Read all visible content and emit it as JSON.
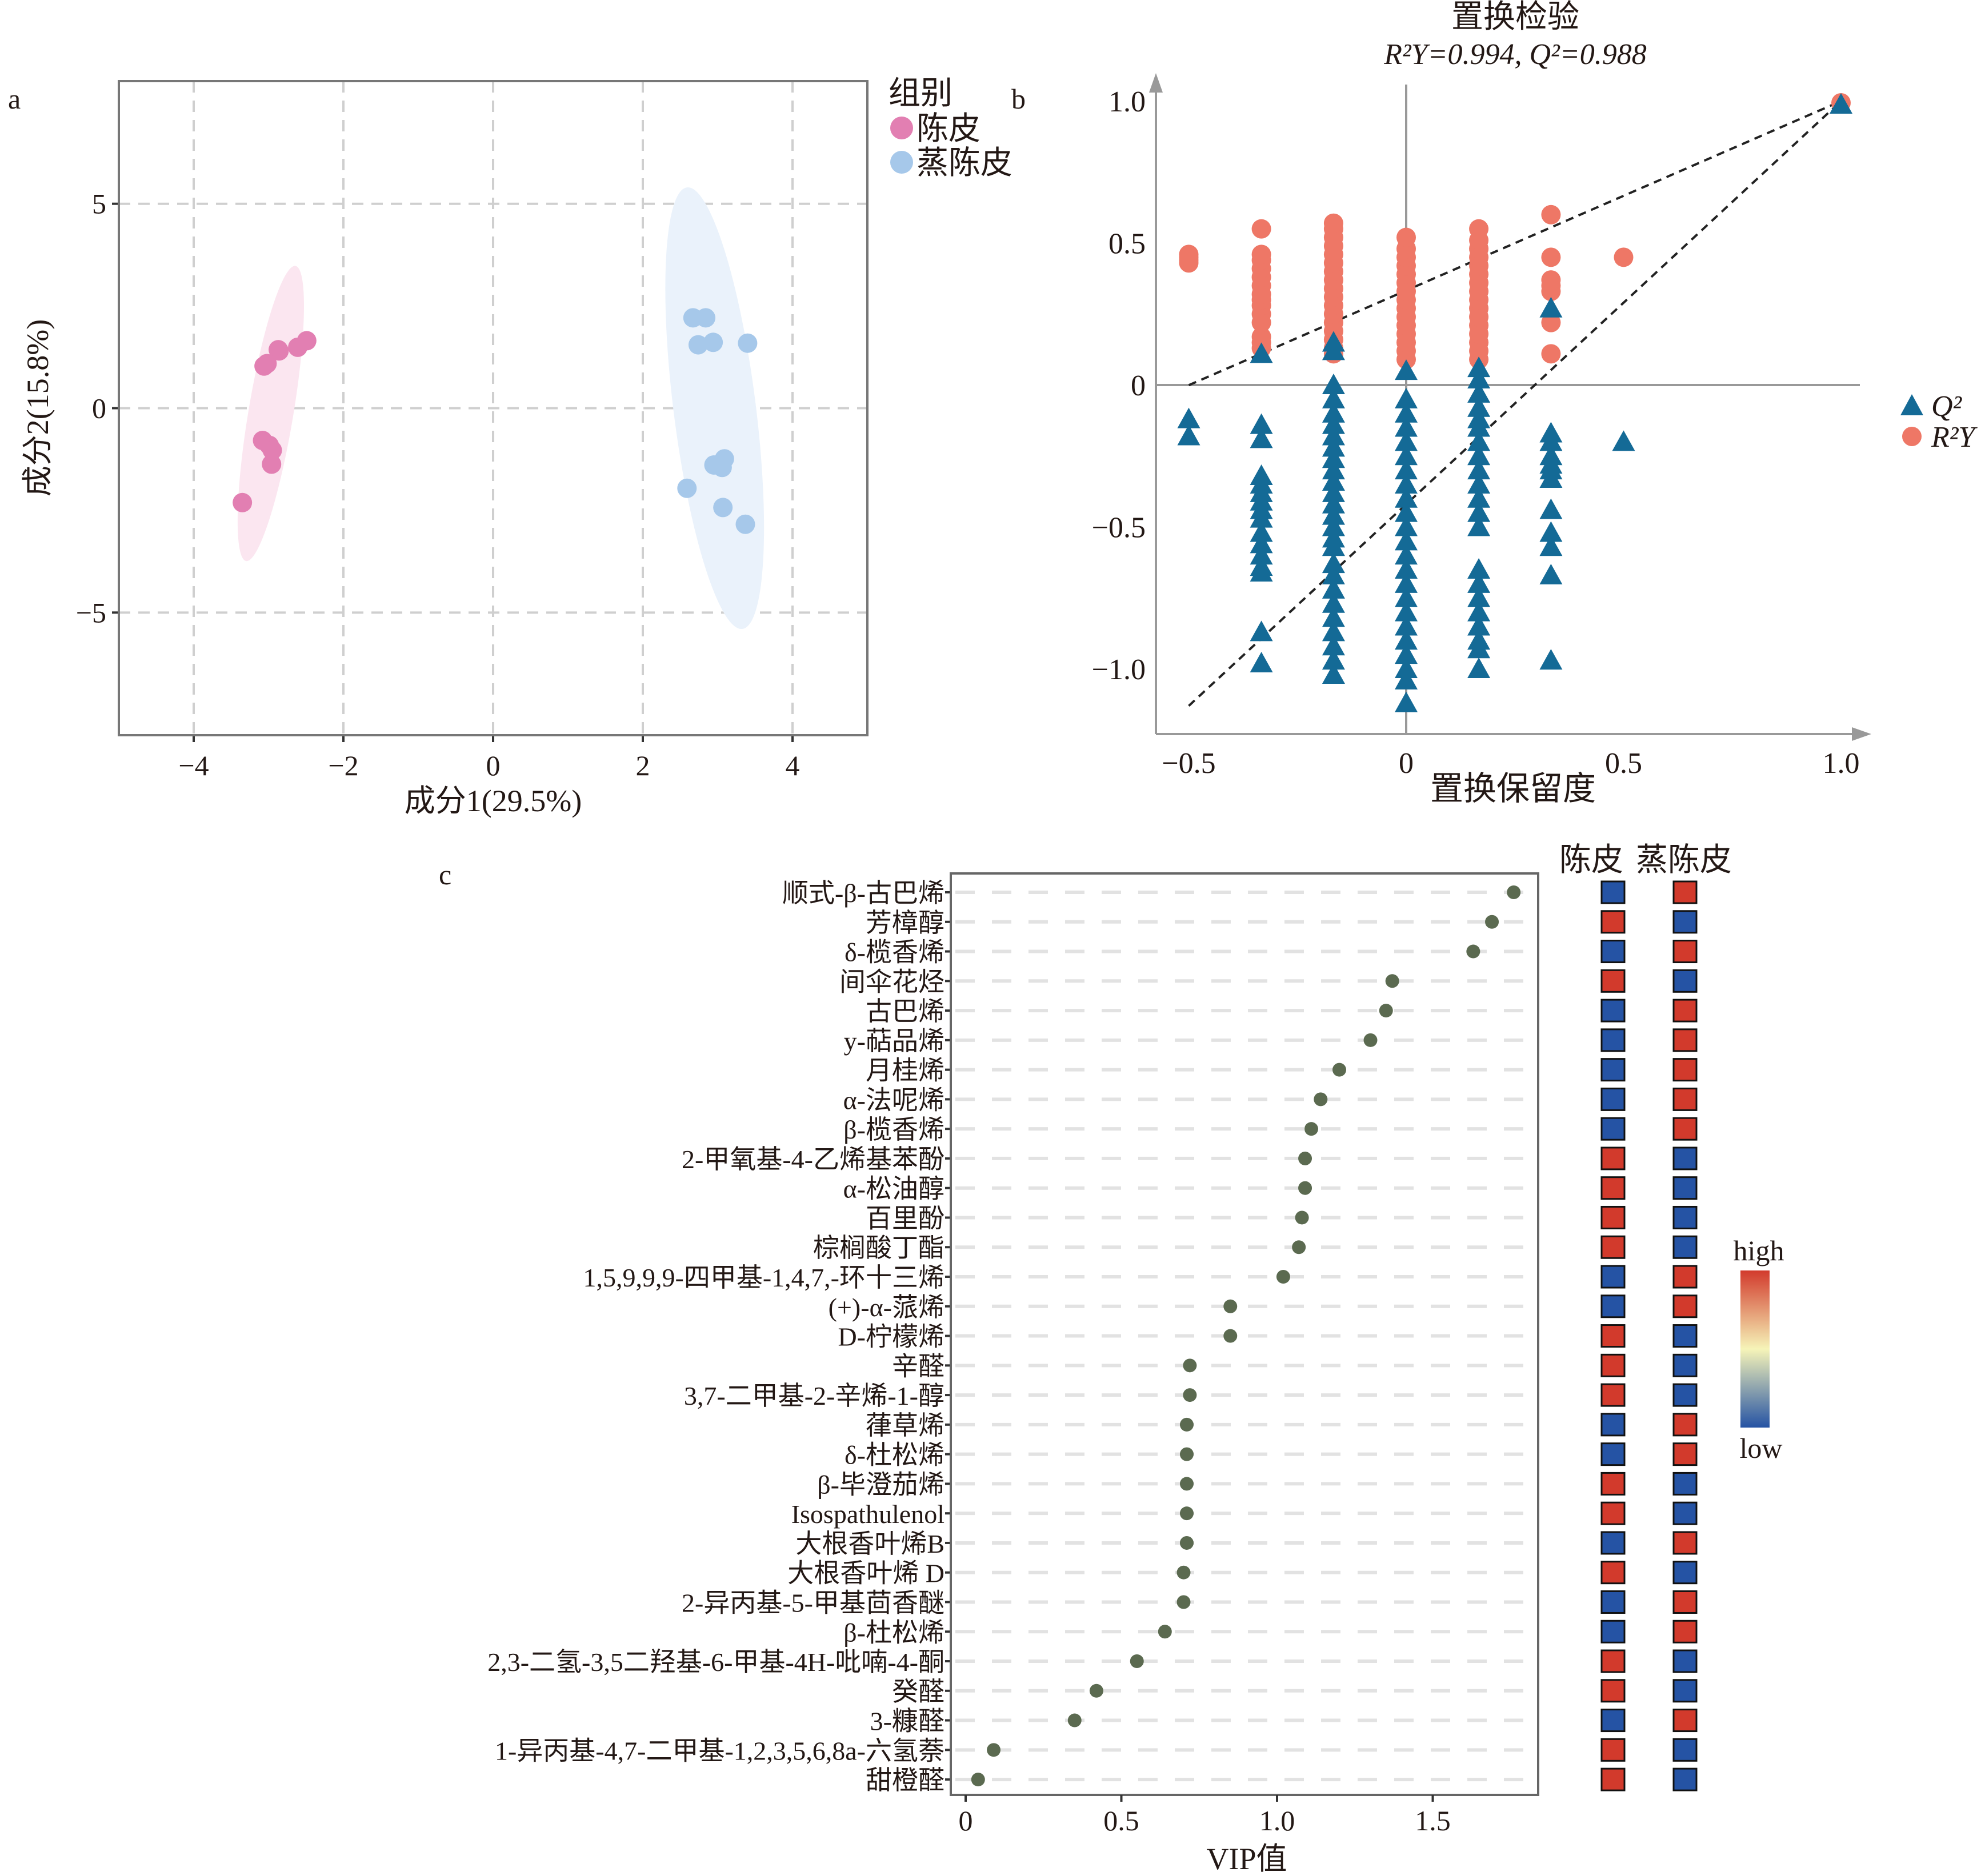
{
  "chart_data": [
    {
      "panel": "a",
      "type": "scatter",
      "xlabel": "成分1(29.5%)",
      "ylabel": "成分2(15.8%)",
      "xlim": [
        -5,
        5
      ],
      "ylim": [
        -8,
        8
      ],
      "xticks": [
        -4,
        -2,
        0,
        2,
        4
      ],
      "xtick_labels": [
        "−4",
        "−2",
        "0",
        "2",
        "4"
      ],
      "yticks": [
        -5,
        0,
        5
      ],
      "ytick_labels": [
        "−5",
        "0",
        "5"
      ],
      "grid": true,
      "legend": {
        "title": "组别",
        "position": "right"
      },
      "series": [
        {
          "name": "陈皮",
          "color": "#e27fb2",
          "ellipse_color": "#fbe6f0",
          "ellipse": {
            "center": [
              -2.97,
              -0.13
            ],
            "major_end": [
              -2.64,
              3.48
            ],
            "minor_half": 0.3
          },
          "points": [
            [
              -2.49,
              1.65
            ],
            [
              -2.61,
              1.49
            ],
            [
              -2.87,
              1.43
            ],
            [
              -2.86,
              1.4
            ],
            [
              -3.02,
              1.09
            ],
            [
              -3.06,
              1.03
            ],
            [
              -3.08,
              -0.79
            ],
            [
              -2.99,
              -0.91
            ],
            [
              -2.95,
              -1.03
            ],
            [
              -2.96,
              -1.37
            ],
            [
              -3.35,
              -2.31
            ]
          ]
        },
        {
          "name": "蒸陈皮",
          "color": "#a6c8ea",
          "ellipse_color": "#eaf2fb",
          "ellipse": {
            "center": [
              2.96,
              0.0
            ],
            "major_end": [
              2.59,
              5.4
            ],
            "minor_half": 0.55
          },
          "points": [
            [
              2.67,
              2.21
            ],
            [
              2.84,
              2.21
            ],
            [
              2.74,
              1.55
            ],
            [
              2.94,
              1.61
            ],
            [
              3.4,
              1.59
            ],
            [
              3.09,
              -1.24
            ],
            [
              2.95,
              -1.39
            ],
            [
              3.06,
              -1.45
            ],
            [
              2.59,
              -1.96
            ],
            [
              3.07,
              -2.43
            ],
            [
              3.37,
              -2.84
            ]
          ]
        }
      ]
    },
    {
      "panel": "b",
      "type": "scatter",
      "title": "置换检验",
      "subtitle": "R²Y=0.994, Q²=0.988",
      "xlabel": "置换保留度",
      "xlim": [
        -0.58,
        1.08
      ],
      "ylim": [
        -1.23,
        1.1
      ],
      "xticks": [
        -0.5,
        0,
        0.5,
        1.0
      ],
      "xtick_labels": [
        "−0.5",
        "0",
        "0.5",
        "1.0"
      ],
      "yticks": [
        1.0,
        0.5,
        0,
        -0.5,
        -1.0
      ],
      "ytick_labels": [
        "1.0",
        "0.5",
        "0",
        "−0.5",
        "−1.0"
      ],
      "legend": {
        "position": "right"
      },
      "series": [
        {
          "name": "Q²",
          "marker": "triangle",
          "color": "#146a96",
          "regression": {
            "intercept": -0.42,
            "slope": 1.42
          },
          "points": {
            "-0.5": [
              -0.12,
              -0.18
            ],
            "-0.333": [
              0.11,
              -0.14,
              -0.19,
              -0.32,
              -0.35,
              -0.38,
              -0.41,
              -0.44,
              -0.47,
              -0.52,
              -0.56,
              -0.6,
              -0.64,
              -0.66,
              -0.87,
              -0.98
            ],
            "-0.167": [
              0.15,
              0.12,
              0.0,
              -0.05,
              -0.1,
              -0.14,
              -0.18,
              -0.22,
              -0.26,
              -0.3,
              -0.34,
              -0.38,
              -0.42,
              -0.46,
              -0.5,
              -0.54,
              -0.57,
              -0.63,
              -0.67,
              -0.72,
              -0.77,
              -0.82,
              -0.87,
              -0.92,
              -0.97,
              -1.02
            ],
            "0": [
              0.05,
              -0.05,
              -0.1,
              -0.15,
              -0.2,
              -0.25,
              -0.3,
              -0.35,
              -0.4,
              -0.45,
              -0.5,
              -0.55,
              -0.6,
              -0.65,
              -0.7,
              -0.75,
              -0.8,
              -0.85,
              -0.9,
              -0.95,
              -1.0,
              -1.04,
              -1.12
            ],
            "0.167": [
              0.06,
              0.02,
              -0.03,
              -0.08,
              -0.12,
              -0.15,
              -0.2,
              -0.25,
              -0.3,
              -0.35,
              -0.4,
              -0.45,
              -0.5,
              -0.65,
              -0.7,
              -0.75,
              -0.8,
              -0.85,
              -0.9,
              -0.93,
              -1.0
            ],
            "0.333": [
              0.27,
              -0.17,
              -0.2,
              -0.25,
              -0.28,
              -0.3,
              -0.33,
              -0.44,
              -0.52,
              -0.57,
              -0.67,
              -0.97
            ],
            "0.5": [
              -0.2
            ],
            "1.0": [
              0.988
            ]
          }
        },
        {
          "name": "R²Y",
          "marker": "circle",
          "color": "#ee7766",
          "regression": {
            "intercept": 0.333,
            "slope": 0.667
          },
          "points": {
            "-0.5": [
              0.43,
              0.44,
              0.45,
              0.46
            ],
            "-0.333": [
              0.13,
              0.15,
              0.17,
              0.22,
              0.25,
              0.28,
              0.3,
              0.32,
              0.35,
              0.38,
              0.41,
              0.44,
              0.46,
              0.55
            ],
            "-0.167": [
              0.11,
              0.13,
              0.16,
              0.19,
              0.22,
              0.25,
              0.28,
              0.31,
              0.34,
              0.37,
              0.4,
              0.43,
              0.46,
              0.49,
              0.52,
              0.55,
              0.57
            ],
            "0": [
              0.09,
              0.12,
              0.15,
              0.18,
              0.21,
              0.24,
              0.27,
              0.3,
              0.33,
              0.36,
              0.39,
              0.42,
              0.45,
              0.48,
              0.52
            ],
            "0.167": [
              0.09,
              0.12,
              0.15,
              0.18,
              0.21,
              0.24,
              0.27,
              0.3,
              0.33,
              0.36,
              0.39,
              0.42,
              0.45,
              0.48,
              0.51,
              0.55
            ],
            "0.333": [
              0.11,
              0.22,
              0.33,
              0.35,
              0.37,
              0.45,
              0.6
            ],
            "0.5": [
              0.45
            ],
            "1.0": [
              0.994
            ]
          }
        }
      ]
    },
    {
      "panel": "c",
      "type": "scatter",
      "xlabel": "VIP值",
      "xlim": [
        -0.05,
        1.85
      ],
      "xticks": [
        0,
        0.5,
        1.0,
        1.5
      ],
      "xtick_labels": [
        "0",
        "0.5",
        "1.0",
        "1.5"
      ],
      "point_color": "#5b6a50",
      "heatmap": {
        "columns": [
          "陈皮",
          "蒸陈皮"
        ],
        "high_label": "high",
        "low_label": "low",
        "high_color": "#d23a2c",
        "mid_color": "#f6f4b8",
        "low_color": "#2553a4"
      },
      "rows": [
        {
          "name": "顺式-β-古巴烯",
          "vip": 1.76,
          "levels": [
            "low",
            "high"
          ]
        },
        {
          "name": "芳樟醇",
          "vip": 1.69,
          "levels": [
            "high",
            "low"
          ]
        },
        {
          "name": "δ-榄香烯",
          "vip": 1.63,
          "levels": [
            "low",
            "high"
          ]
        },
        {
          "name": "间伞花烃",
          "vip": 1.37,
          "levels": [
            "high",
            "low"
          ]
        },
        {
          "name": "古巴烯",
          "vip": 1.35,
          "levels": [
            "low",
            "high"
          ]
        },
        {
          "name": "y-萜品烯",
          "vip": 1.3,
          "levels": [
            "low",
            "high"
          ]
        },
        {
          "name": "月桂烯",
          "vip": 1.2,
          "levels": [
            "low",
            "high"
          ]
        },
        {
          "name": "α-法呢烯",
          "vip": 1.14,
          "levels": [
            "low",
            "high"
          ]
        },
        {
          "name": "β-榄香烯",
          "vip": 1.11,
          "levels": [
            "low",
            "high"
          ]
        },
        {
          "name": "2-甲氧基-4-乙烯基苯酚",
          "vip": 1.09,
          "levels": [
            "high",
            "low"
          ]
        },
        {
          "name": "α-松油醇",
          "vip": 1.09,
          "levels": [
            "high",
            "low"
          ]
        },
        {
          "name": "百里酚",
          "vip": 1.08,
          "levels": [
            "high",
            "low"
          ]
        },
        {
          "name": "棕榈酸丁酯",
          "vip": 1.07,
          "levels": [
            "high",
            "low"
          ]
        },
        {
          "name": "1,5,9,9,9-四甲基-1,4,7,-环十三烯",
          "vip": 1.02,
          "levels": [
            "low",
            "high"
          ]
        },
        {
          "name": "(+)-α-蒎烯",
          "vip": 0.85,
          "levels": [
            "low",
            "high"
          ]
        },
        {
          "name": "D-柠檬烯",
          "vip": 0.85,
          "levels": [
            "high",
            "low"
          ]
        },
        {
          "name": "辛醛",
          "vip": 0.72,
          "levels": [
            "high",
            "low"
          ]
        },
        {
          "name": "3,7-二甲基-2-辛烯-1-醇",
          "vip": 0.72,
          "levels": [
            "high",
            "low"
          ]
        },
        {
          "name": "葎草烯",
          "vip": 0.71,
          "levels": [
            "low",
            "high"
          ]
        },
        {
          "name": "δ-杜松烯",
          "vip": 0.71,
          "levels": [
            "low",
            "high"
          ]
        },
        {
          "name": "β-毕澄茄烯",
          "vip": 0.71,
          "levels": [
            "high",
            "low"
          ]
        },
        {
          "name": "Isospathulenol",
          "vip": 0.71,
          "levels": [
            "high",
            "low"
          ]
        },
        {
          "name": "大根香叶烯B",
          "vip": 0.71,
          "levels": [
            "low",
            "high"
          ]
        },
        {
          "name": "大根香叶烯 D",
          "vip": 0.7,
          "levels": [
            "high",
            "low"
          ]
        },
        {
          "name": "2-异丙基-5-甲基茴香醚",
          "vip": 0.7,
          "levels": [
            "low",
            "high"
          ]
        },
        {
          "name": "β-杜松烯",
          "vip": 0.64,
          "levels": [
            "low",
            "high"
          ]
        },
        {
          "name": "2,3-二氢-3,5二羟基-6-甲基-4H-吡喃-4-酮",
          "vip": 0.55,
          "levels": [
            "high",
            "low"
          ]
        },
        {
          "name": "癸醛",
          "vip": 0.42,
          "levels": [
            "high",
            "low"
          ]
        },
        {
          "name": "3-糠醛",
          "vip": 0.35,
          "levels": [
            "low",
            "high"
          ]
        },
        {
          "name": "1-异丙基-4,7-二甲基-1,2,3,5,6,8a-六氢萘",
          "vip": 0.09,
          "levels": [
            "high",
            "low"
          ]
        },
        {
          "name": "甜橙醛",
          "vip": 0.04,
          "levels": [
            "high",
            "low"
          ]
        }
      ]
    }
  ],
  "panel_labels": [
    "a",
    "b",
    "c"
  ]
}
